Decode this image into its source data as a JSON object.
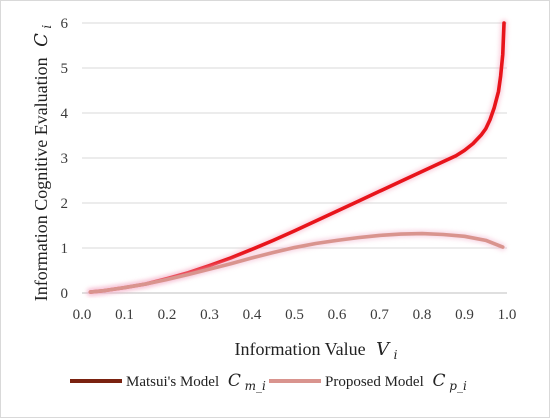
{
  "chart_data": {
    "type": "line",
    "xlabel": "Information Value",
    "xlabel_math": "V",
    "xlabel_sub": "i",
    "ylabel": "Information Cognitive Evaluation",
    "ylabel_math": "C",
    "ylabel_sub": "i",
    "xlim": [
      0.0,
      1.0
    ],
    "ylim": [
      0,
      6
    ],
    "xticks": [
      "0.0",
      "0.1",
      "0.2",
      "0.3",
      "0.4",
      "0.5",
      "0.6",
      "0.7",
      "0.8",
      "0.9",
      "1.0"
    ],
    "yticks": [
      "0",
      "1",
      "2",
      "3",
      "4",
      "5",
      "6"
    ],
    "grid": "horizontal",
    "legend_position": "bottom",
    "series": [
      {
        "name": "Matsui's Model",
        "name_math": "C",
        "name_sub": "m_i",
        "color": "#e8141b",
        "legend_color": "#7a2210",
        "points": [
          [
            0.02,
            0.02
          ],
          [
            0.05,
            0.05
          ],
          [
            0.1,
            0.12
          ],
          [
            0.15,
            0.2
          ],
          [
            0.2,
            0.32
          ],
          [
            0.25,
            0.45
          ],
          [
            0.3,
            0.61
          ],
          [
            0.35,
            0.78
          ],
          [
            0.4,
            0.97
          ],
          [
            0.45,
            1.17
          ],
          [
            0.5,
            1.38
          ],
          [
            0.55,
            1.6
          ],
          [
            0.6,
            1.82
          ],
          [
            0.65,
            2.04
          ],
          [
            0.7,
            2.26
          ],
          [
            0.75,
            2.48
          ],
          [
            0.8,
            2.7
          ],
          [
            0.85,
            2.92
          ],
          [
            0.88,
            3.05
          ],
          [
            0.9,
            3.17
          ],
          [
            0.92,
            3.32
          ],
          [
            0.94,
            3.52
          ],
          [
            0.95,
            3.65
          ],
          [
            0.96,
            3.85
          ],
          [
            0.97,
            4.12
          ],
          [
            0.98,
            4.48
          ],
          [
            0.985,
            4.82
          ],
          [
            0.99,
            5.3
          ],
          [
            0.993,
            6.0
          ]
        ]
      },
      {
        "name": "Proposed Model",
        "name_math": "C",
        "name_sub": "p_i",
        "color": "#d9948e",
        "legend_color": "#d9948e",
        "points": [
          [
            0.02,
            0.02
          ],
          [
            0.05,
            0.05
          ],
          [
            0.1,
            0.12
          ],
          [
            0.15,
            0.2
          ],
          [
            0.2,
            0.3
          ],
          [
            0.25,
            0.41
          ],
          [
            0.3,
            0.53
          ],
          [
            0.35,
            0.65
          ],
          [
            0.4,
            0.78
          ],
          [
            0.45,
            0.9
          ],
          [
            0.5,
            1.01
          ],
          [
            0.55,
            1.1
          ],
          [
            0.6,
            1.17
          ],
          [
            0.65,
            1.23
          ],
          [
            0.7,
            1.28
          ],
          [
            0.75,
            1.31
          ],
          [
            0.8,
            1.32
          ],
          [
            0.85,
            1.3
          ],
          [
            0.9,
            1.26
          ],
          [
            0.95,
            1.17
          ],
          [
            0.99,
            1.02
          ]
        ]
      }
    ]
  }
}
